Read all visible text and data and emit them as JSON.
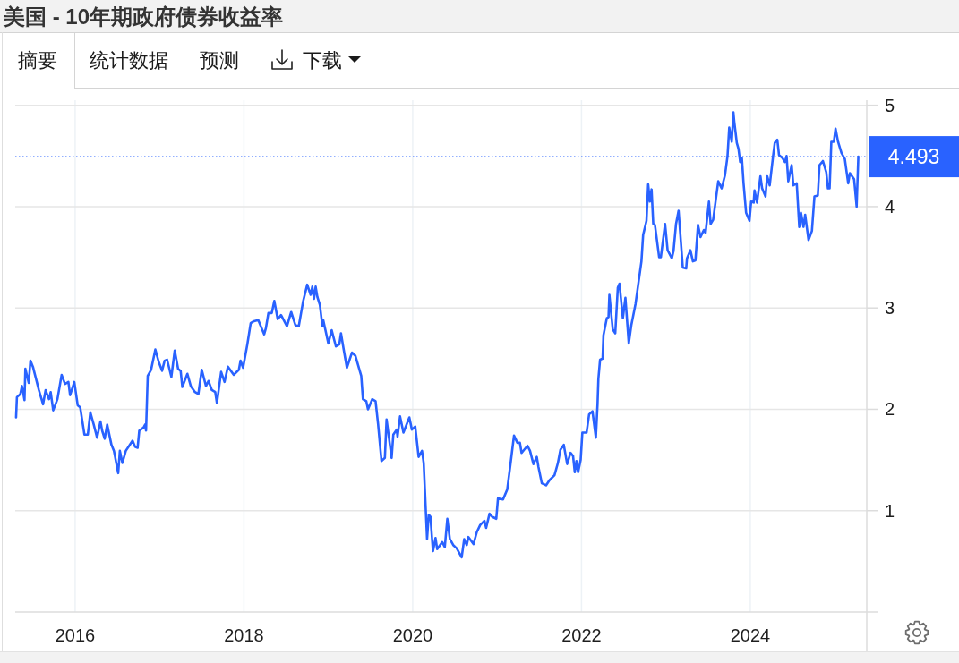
{
  "chart_data": {
    "type": "line",
    "title": "美国 - 10年期政府债券收益率",
    "annotations": [
      "摘要",
      "统计数据",
      "预测",
      "下载"
    ],
    "x": [
      2015.3,
      2015.31,
      2015.35,
      2015.37,
      2015.4,
      2015.41,
      2015.45,
      2015.47,
      2015.5,
      2015.57,
      2015.62,
      2015.65,
      2015.69,
      2015.71,
      2015.74,
      2015.79,
      2015.84,
      2015.88,
      2015.92,
      2015.94,
      2015.99,
      2016.03,
      2016.06,
      2016.11,
      2016.15,
      2016.18,
      2016.22,
      2016.26,
      2016.3,
      2016.32,
      2016.35,
      2016.38,
      2016.43,
      2016.46,
      2016.51,
      2016.53,
      2016.56,
      2016.6,
      2016.64,
      2016.68,
      2016.71,
      2016.74,
      2016.76,
      2016.81,
      2016.83,
      2016.84,
      2016.86,
      2016.9,
      2016.95,
      2016.99,
      2017.03,
      2017.06,
      2017.09,
      2017.14,
      2017.18,
      2017.22,
      2017.25,
      2017.27,
      2017.33,
      2017.37,
      2017.42,
      2017.46,
      2017.5,
      2017.55,
      2017.58,
      2017.62,
      2017.66,
      2017.68,
      2017.73,
      2017.77,
      2017.81,
      2017.88,
      2017.94,
      2017.96,
      2017.99,
      2018.04,
      2018.08,
      2018.12,
      2018.17,
      2018.24,
      2018.26,
      2018.29,
      2018.33,
      2018.36,
      2018.4,
      2018.44,
      2018.51,
      2018.56,
      2018.61,
      2018.65,
      2018.7,
      2018.75,
      2018.79,
      2018.81,
      2018.83,
      2018.85,
      2018.87,
      2018.9,
      2018.93,
      2018.94,
      2019.0,
      2019.04,
      2019.09,
      2019.13,
      2019.15,
      2019.18,
      2019.22,
      2019.28,
      2019.32,
      2019.39,
      2019.41,
      2019.45,
      2019.47,
      2019.52,
      2019.56,
      2019.59,
      2019.63,
      2019.67,
      2019.69,
      2019.75,
      2019.77,
      2019.81,
      2019.82,
      2019.85,
      2019.89,
      2019.96,
      2019.99,
      2020.03,
      2020.07,
      2020.11,
      2020.13,
      2020.17,
      2020.19,
      2020.21,
      2020.24,
      2020.27,
      2020.29,
      2020.35,
      2020.38,
      2020.41,
      2020.44,
      2020.48,
      2020.52,
      2020.58,
      2020.61,
      2020.64,
      2020.66,
      2020.72,
      2020.76,
      2020.8,
      2020.85,
      2020.87,
      2020.91,
      2020.94,
      2020.99,
      2021.01,
      2021.07,
      2021.12,
      2021.16,
      2021.2,
      2021.24,
      2021.27,
      2021.29,
      2021.32,
      2021.36,
      2021.39,
      2021.43,
      2021.47,
      2021.49,
      2021.53,
      2021.58,
      2021.62,
      2021.68,
      2021.72,
      2021.75,
      2021.79,
      2021.83,
      2021.87,
      2021.9,
      2021.92,
      2021.94,
      2021.96,
      2021.99,
      2022.01,
      2022.06,
      2022.09,
      2022.13,
      2022.17,
      2022.19,
      2022.2,
      2022.22,
      2022.25,
      2022.26,
      2022.3,
      2022.32,
      2022.33,
      2022.37,
      2022.4,
      2022.43,
      2022.45,
      2022.49,
      2022.52,
      2022.56,
      2022.59,
      2022.64,
      2022.71,
      2022.73,
      2022.77,
      2022.79,
      2022.81,
      2022.83,
      2022.85,
      2022.87,
      2022.92,
      2022.94,
      2022.99,
      2023.02,
      2023.07,
      2023.09,
      2023.12,
      2023.15,
      2023.2,
      2023.24,
      2023.25,
      2023.29,
      2023.32,
      2023.35,
      2023.38,
      2023.41,
      2023.45,
      2023.47,
      2023.51,
      2023.53,
      2023.56,
      2023.62,
      2023.66,
      2023.7,
      2023.73,
      2023.75,
      2023.78,
      2023.8,
      2023.81,
      2023.84,
      2023.86,
      2023.88,
      2023.9,
      2023.92,
      2023.95,
      2023.99,
      2024.01,
      2024.04,
      2024.05,
      2024.08,
      2024.12,
      2024.14,
      2024.18,
      2024.2,
      2024.23,
      2024.27,
      2024.29,
      2024.32,
      2024.34,
      2024.38,
      2024.41,
      2024.43,
      2024.45,
      2024.49,
      2024.51,
      2024.55,
      2024.58,
      2024.6,
      2024.63,
      2024.65,
      2024.69,
      2024.73,
      2024.76,
      2024.8,
      2024.82,
      2024.86,
      2024.9,
      2024.92,
      2024.94,
      2024.96,
      2024.99,
      2025.01,
      2025.04,
      2025.08,
      2025.12,
      2025.16,
      2025.18,
      2025.23,
      2025.26,
      2025.28
    ],
    "series": [
      {
        "color": "#2962ff",
        "values": [
          1.92,
          2.12,
          2.15,
          2.23,
          2.09,
          2.4,
          2.26,
          2.48,
          2.42,
          2.19,
          2.05,
          2.19,
          2.1,
          2.17,
          1.99,
          2.1,
          2.34,
          2.25,
          2.27,
          2.14,
          2.27,
          2.04,
          2.02,
          1.75,
          1.75,
          1.97,
          1.85,
          1.72,
          1.88,
          1.79,
          1.71,
          1.85,
          1.65,
          1.59,
          1.37,
          1.59,
          1.47,
          1.59,
          1.64,
          1.69,
          1.63,
          1.62,
          1.79,
          1.82,
          1.85,
          1.79,
          2.33,
          2.39,
          2.59,
          2.47,
          2.38,
          2.48,
          2.49,
          2.32,
          2.58,
          2.4,
          2.38,
          2.22,
          2.35,
          2.23,
          2.17,
          2.15,
          2.39,
          2.23,
          2.28,
          2.19,
          2.17,
          2.06,
          2.37,
          2.27,
          2.42,
          2.34,
          2.39,
          2.48,
          2.41,
          2.64,
          2.85,
          2.87,
          2.88,
          2.74,
          2.8,
          2.95,
          2.95,
          3.07,
          2.89,
          2.93,
          2.82,
          2.96,
          2.83,
          2.82,
          3.06,
          3.23,
          3.13,
          3.21,
          3.09,
          3.21,
          3.11,
          3.03,
          2.82,
          2.88,
          2.65,
          2.78,
          2.62,
          2.64,
          2.75,
          2.6,
          2.41,
          2.56,
          2.53,
          2.33,
          2.1,
          2.08,
          2.0,
          2.1,
          2.08,
          1.85,
          1.49,
          1.52,
          1.9,
          1.52,
          1.75,
          1.8,
          1.73,
          1.93,
          1.77,
          1.92,
          1.8,
          1.83,
          1.53,
          1.59,
          1.47,
          0.72,
          0.96,
          0.94,
          0.6,
          0.73,
          0.62,
          0.69,
          0.64,
          0.92,
          0.72,
          0.66,
          0.63,
          0.54,
          0.72,
          0.66,
          0.74,
          0.67,
          0.79,
          0.86,
          0.9,
          0.83,
          0.97,
          0.94,
          0.92,
          1.12,
          1.11,
          1.21,
          1.47,
          1.74,
          1.67,
          1.67,
          1.57,
          1.6,
          1.64,
          1.59,
          1.46,
          1.53,
          1.43,
          1.27,
          1.25,
          1.3,
          1.35,
          1.47,
          1.6,
          1.65,
          1.46,
          1.57,
          1.54,
          1.38,
          1.49,
          1.38,
          1.5,
          1.77,
          1.77,
          1.95,
          1.98,
          1.72,
          2.05,
          2.3,
          2.49,
          2.5,
          2.73,
          2.9,
          2.91,
          3.13,
          2.79,
          2.75,
          3.2,
          3.24,
          2.9,
          3.1,
          2.65,
          2.83,
          3.04,
          3.46,
          3.72,
          3.86,
          4.22,
          4.05,
          4.17,
          3.83,
          3.82,
          3.5,
          3.5,
          3.83,
          3.57,
          3.49,
          3.56,
          3.83,
          3.96,
          3.4,
          3.39,
          3.49,
          3.57,
          3.46,
          3.47,
          3.82,
          3.7,
          3.77,
          3.74,
          4.05,
          3.83,
          3.87,
          4.25,
          4.18,
          4.31,
          4.5,
          4.78,
          4.64,
          4.93,
          4.84,
          4.63,
          4.57,
          4.44,
          4.48,
          4.23,
          3.94,
          3.86,
          4.05,
          4.04,
          4.16,
          4.04,
          4.3,
          4.18,
          4.1,
          4.3,
          4.21,
          4.5,
          4.63,
          4.66,
          4.51,
          4.48,
          4.44,
          4.5,
          4.25,
          4.41,
          4.21,
          4.23,
          3.8,
          3.94,
          3.8,
          3.92,
          3.67,
          3.76,
          4.1,
          4.11,
          4.41,
          4.45,
          4.34,
          4.18,
          4.18,
          4.64,
          4.64,
          4.77,
          4.64,
          4.53,
          4.47,
          4.23,
          4.33,
          4.27,
          4.0,
          4.493
        ]
      }
    ],
    "xlim": [
      2015.29,
      2025.38
    ],
    "ylim": [
      0,
      5.05
    ],
    "xticks": [
      2016,
      2018,
      2020,
      2022,
      2024
    ],
    "yticks": [
      1,
      2,
      3,
      4,
      5
    ],
    "grid": true,
    "ref_lines": [
      {
        "axis": "y",
        "value": 4.493,
        "label": "4.493",
        "color": "#2962ff",
        "line_style": "dotted"
      }
    ]
  }
}
